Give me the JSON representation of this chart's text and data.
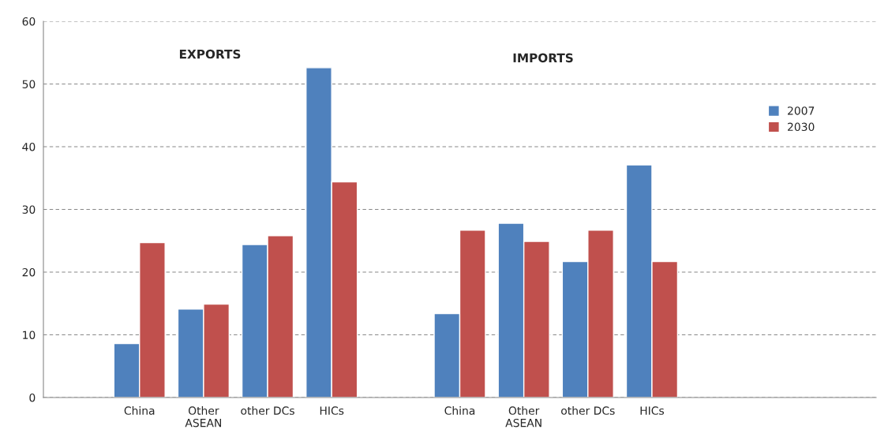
{
  "chart_data": {
    "type": "bar",
    "categories": [
      null,
      "China",
      "Other\nASEAN",
      "other DCs",
      "HICs",
      null,
      "China",
      "Other\nASEAN",
      "other DCs",
      "HICs",
      null,
      null,
      null
    ],
    "series": [
      {
        "name": "2007",
        "color": "#4f81bd",
        "values": [
          null,
          8.6,
          14.1,
          24.4,
          52.6,
          null,
          13.4,
          27.8,
          21.7,
          37.1,
          null,
          null,
          null
        ]
      },
      {
        "name": "2030",
        "color": "#c0504d",
        "values": [
          null,
          24.7,
          14.9,
          25.8,
          34.4,
          null,
          26.7,
          24.9,
          26.7,
          21.7,
          null,
          null,
          null
        ]
      }
    ],
    "annotations": [
      "EXPORTS",
      "IMPORTS"
    ],
    "ylim": [
      0,
      60
    ],
    "yticks": [
      0,
      10,
      20,
      30,
      40,
      50,
      60
    ],
    "grid": "y",
    "legend": "right"
  }
}
